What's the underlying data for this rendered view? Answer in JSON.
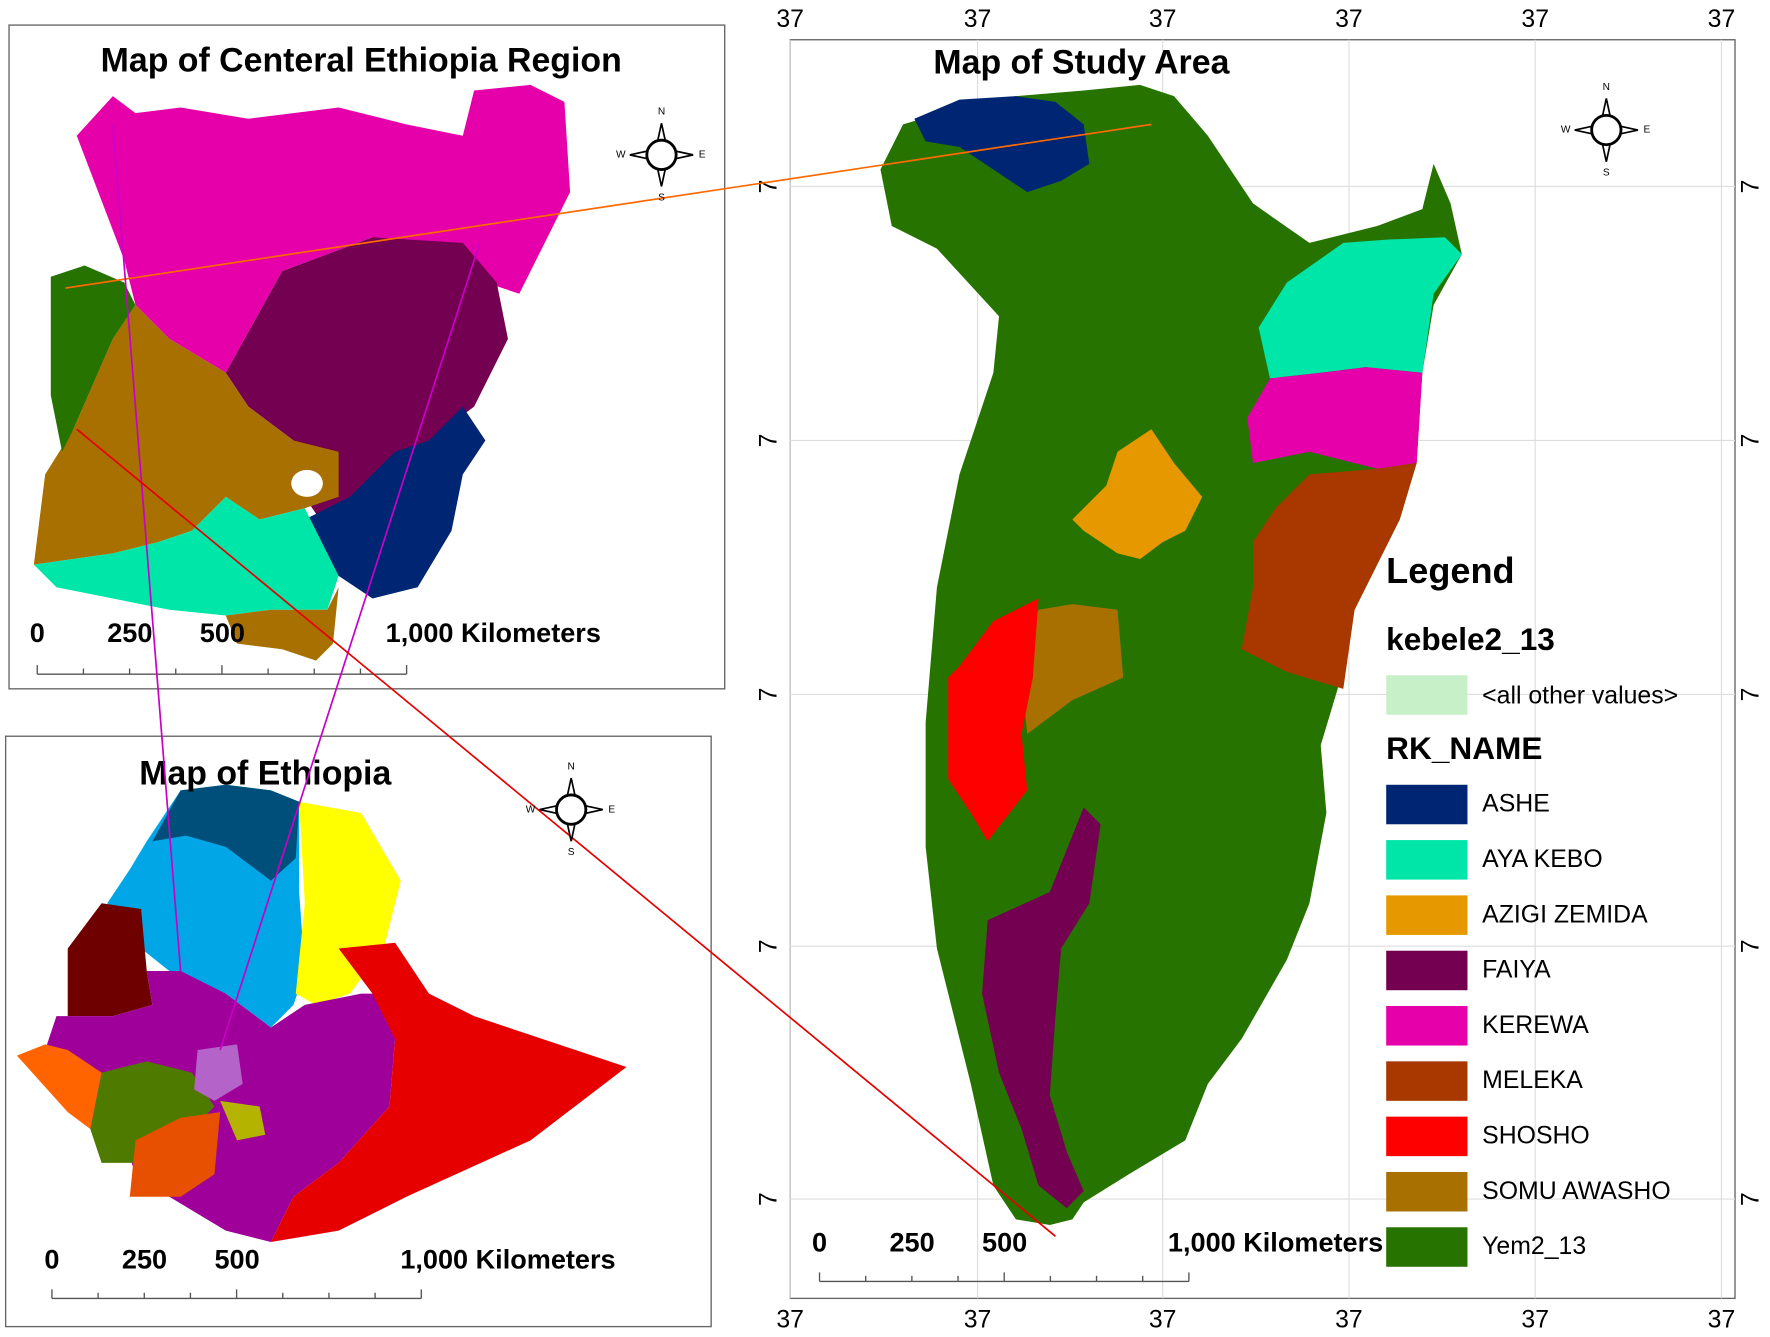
{
  "central_map": {
    "title": "Map of Centeral Ethiopia Region",
    "scale_labels": [
      "0",
      "250",
      "500",
      "1,000 Kilometers"
    ]
  },
  "ethiopia_map": {
    "title": "Map of Ethiopia",
    "scale_labels": [
      "0",
      "250",
      "500",
      "1,000 Kilometers"
    ]
  },
  "compass_labels": [
    "N",
    "E",
    "S",
    "W"
  ],
  "study_area": {
    "title": "Map of Study Area",
    "scale_labels": [
      "0",
      "250",
      "500",
      "1,000 Kilometers"
    ],
    "top_labels": [
      "37",
      "37",
      "37",
      "37",
      "37",
      "37"
    ],
    "bottom_labels": [
      "37",
      "37",
      "37",
      "37",
      "37",
      "37"
    ],
    "left_labels": [
      "7",
      "7",
      "7",
      "7",
      "7"
    ],
    "right_labels": [
      "7",
      "7",
      "7",
      "7",
      "7"
    ]
  },
  "legend": {
    "title": "Legend",
    "layer": "kebele2_13",
    "other_label": "<all other values>",
    "other_color": "#c8f0c8",
    "field": "RK_NAME",
    "items": [
      {
        "name": "ASHE",
        "color": "#002673"
      },
      {
        "name": "AYA KEBO",
        "color": "#00e6a9"
      },
      {
        "name": "AZIGI ZEMIDA",
        "color": "#e69800"
      },
      {
        "name": "FAIYA",
        "color": "#730050"
      },
      {
        "name": "KEREWA",
        "color": "#e600a9"
      },
      {
        "name": "MELEKA",
        "color": "#a83800"
      },
      {
        "name": "SHOSHO",
        "color": "#ff0000"
      },
      {
        "name": "SOMU AWASHO",
        "color": "#a87000"
      },
      {
        "name": "Yem2_13",
        "color": "#267300"
      }
    ]
  }
}
